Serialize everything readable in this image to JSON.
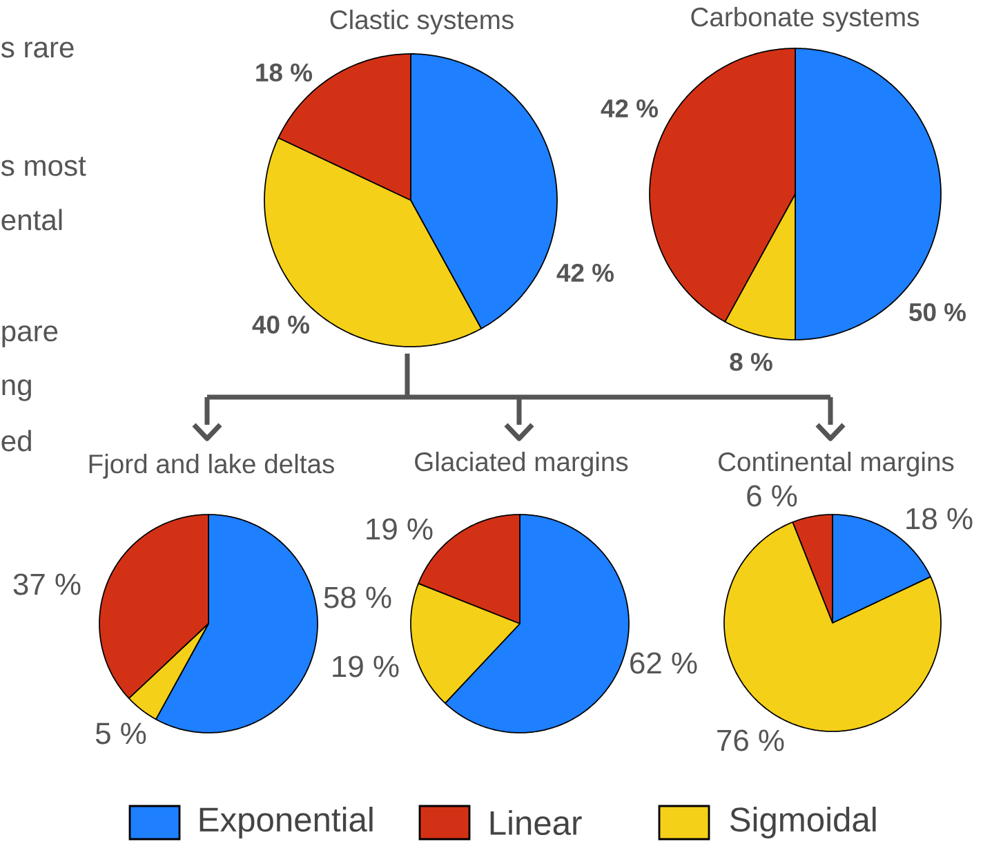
{
  "chart_data": [
    {
      "type": "other",
      "annotations": [
        "s rare",
        "s most",
        "ental",
        "pare",
        "ng",
        "ed"
      ]
    },
    {
      "type": "pie",
      "title": "Clastic systems",
      "categories": [
        "Exponential",
        "Linear",
        "Sigmoidal"
      ],
      "values": [
        42,
        18,
        40
      ],
      "value_labels": [
        "42 %",
        "18 %",
        "40 %"
      ],
      "colors": [
        "#1e7fff",
        "#d33116",
        "#f5d018"
      ],
      "legend": "bottom"
    },
    {
      "type": "pie",
      "title": "Carbonate systems",
      "categories": [
        null,
        null,
        null
      ],
      "values": [
        50,
        42,
        8
      ],
      "value_labels": [
        "50 %",
        "42 %",
        "8 %"
      ],
      "colors": [
        "#1e7fff",
        "#d33116",
        "#f5d018"
      ]
    },
    {
      "type": "pie",
      "title": "Fjord and lake deltas",
      "categories": [
        null,
        null,
        null
      ],
      "values": [
        58,
        37,
        5
      ],
      "value_labels": [
        "58 %",
        "37 %",
        "5 %"
      ],
      "colors": [
        "#1e7fff",
        "#d33116",
        "#f5d018"
      ]
    },
    {
      "type": "pie",
      "title": "Glaciated margins",
      "categories": [
        null,
        null,
        null
      ],
      "values": [
        62,
        19,
        19
      ],
      "value_labels": [
        "62 %",
        "19 %",
        "19 %"
      ],
      "colors": [
        "#1e7fff",
        "#d33116",
        "#f5d018"
      ]
    },
    {
      "type": "pie",
      "title": "Continental margins",
      "categories": [
        null,
        null,
        null
      ],
      "values": [
        18,
        6,
        76
      ],
      "value_labels": [
        "18 %",
        "6 %",
        "76 %"
      ],
      "colors": [
        "#1e7fff",
        "#d33116",
        "#f5d018"
      ]
    }
  ]
}
